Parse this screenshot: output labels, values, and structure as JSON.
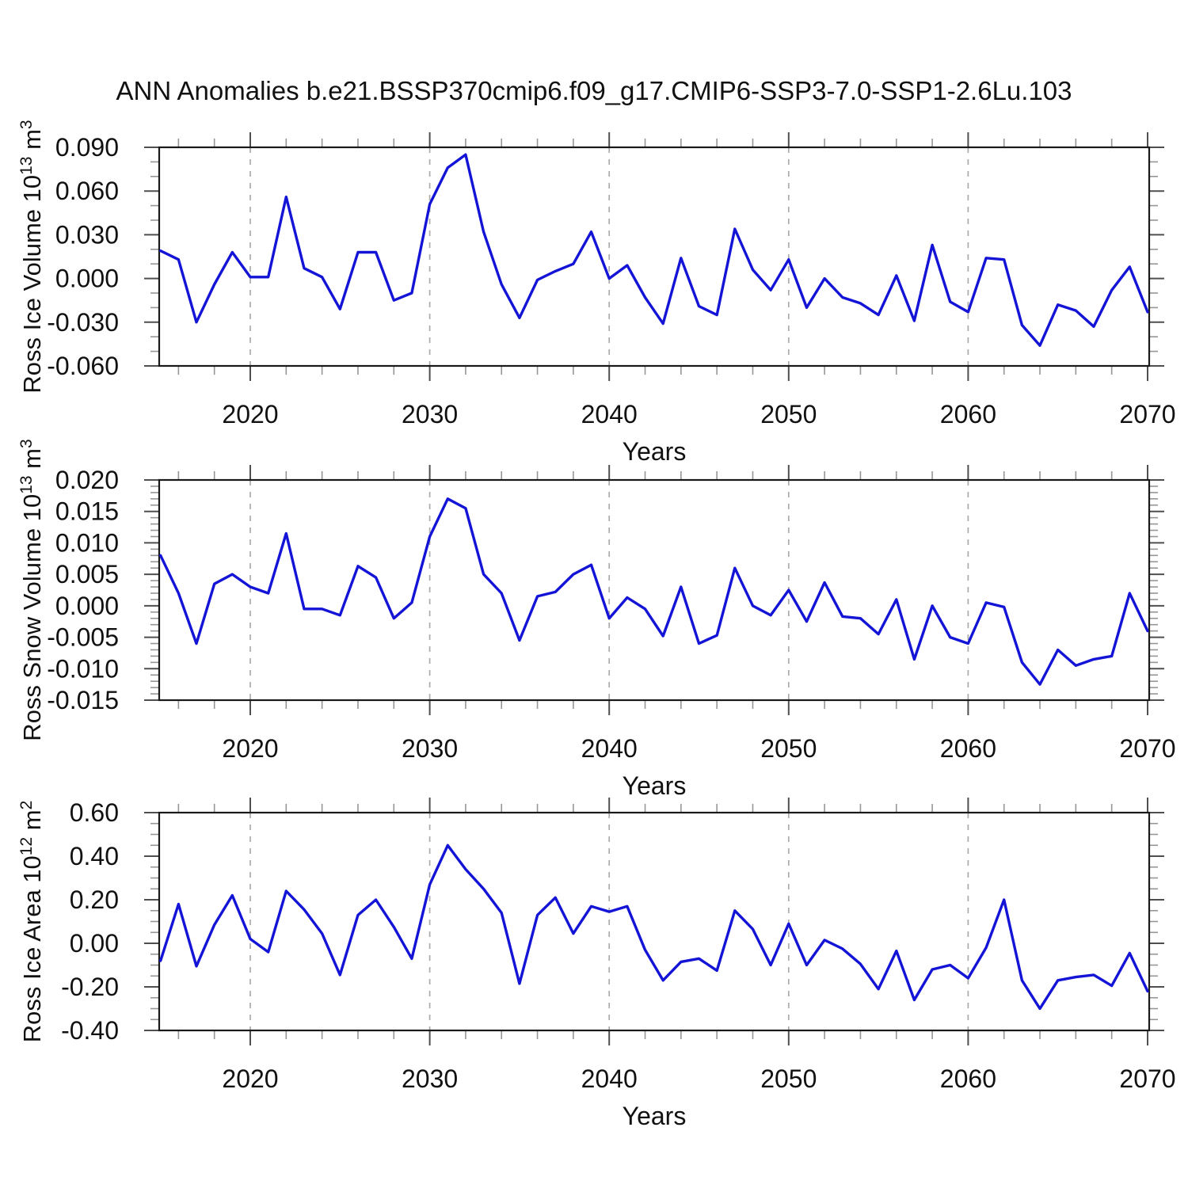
{
  "title": "ANN Anomalies b.e21.BSSP370cmip6.f09_g17.CMIP6-SSP3-7.0-SSP1-2.6Lu.103",
  "line_color": "#1414d7",
  "background": "#ffffff",
  "years": [
    2015,
    2016,
    2017,
    2018,
    2019,
    2020,
    2021,
    2022,
    2023,
    2024,
    2025,
    2026,
    2027,
    2028,
    2029,
    2030,
    2031,
    2032,
    2033,
    2034,
    2035,
    2036,
    2037,
    2038,
    2039,
    2040,
    2041,
    2042,
    2043,
    2044,
    2045,
    2046,
    2047,
    2048,
    2049,
    2050,
    2051,
    2052,
    2053,
    2054,
    2055,
    2056,
    2057,
    2058,
    2059,
    2060,
    2061,
    2062,
    2063,
    2064,
    2065,
    2066,
    2067,
    2068,
    2069,
    2070
  ],
  "x_axis": {
    "label": "Years",
    "tick_years": [
      2020,
      2030,
      2040,
      2050,
      2060,
      2070
    ],
    "minor_step_years": 2,
    "xlim": [
      2014.9,
      2070.1
    ],
    "gridline_years": [
      2020,
      2030,
      2040,
      2050,
      2060
    ],
    "grid_style": "dashed"
  },
  "chart_data": [
    {
      "type": "line",
      "ylabel": "Ross Ice Volume 10^13 m^3",
      "ylabel_parts": [
        {
          "t": "Ross Ice Volume 10"
        },
        {
          "t": "13",
          "sup": true
        },
        {
          "t": " m"
        },
        {
          "t": "3",
          "sup": true
        }
      ],
      "ylim": [
        -0.06,
        0.09
      ],
      "ytick_values": [
        0.09,
        0.06,
        0.03,
        0.0,
        -0.03,
        -0.06
      ],
      "ytick_labels": [
        "0.090",
        "0.060",
        "0.030",
        "0.000",
        "-0.030",
        "-0.060"
      ],
      "y_minor_step": 0.01,
      "values": [
        0.019,
        0.013,
        -0.03,
        -0.004,
        0.018,
        0.001,
        0.001,
        0.056,
        0.007,
        0.001,
        -0.021,
        0.018,
        0.018,
        -0.015,
        -0.01,
        0.051,
        0.076,
        0.085,
        0.032,
        -0.004,
        -0.027,
        -0.001,
        0.005,
        0.01,
        0.032,
        0.0,
        0.009,
        -0.013,
        -0.031,
        0.014,
        -0.019,
        -0.025,
        0.034,
        0.006,
        -0.008,
        0.013,
        -0.02,
        0.0,
        -0.013,
        -0.017,
        -0.025,
        0.002,
        -0.029,
        0.023,
        -0.016,
        -0.023,
        0.014,
        0.013,
        -0.032,
        -0.046,
        -0.018,
        -0.022,
        -0.033,
        -0.008,
        0.008,
        -0.023
      ]
    },
    {
      "type": "line",
      "ylabel": "Ross Snow Volume 10^13 m^3",
      "ylabel_parts": [
        {
          "t": "Ross Snow Volume 10"
        },
        {
          "t": "13",
          "sup": true
        },
        {
          "t": " m"
        },
        {
          "t": "3",
          "sup": true
        }
      ],
      "ylim": [
        -0.015,
        0.02
      ],
      "ytick_values": [
        0.02,
        0.015,
        0.01,
        0.005,
        0.0,
        -0.005,
        -0.01,
        -0.015
      ],
      "ytick_labels": [
        "0.020",
        "0.015",
        "0.010",
        "0.005",
        "0.000",
        "-0.005",
        "-0.010",
        "-0.015"
      ],
      "y_minor_step": 0.001,
      "values": [
        0.008,
        0.002,
        -0.006,
        0.0035,
        0.005,
        0.003,
        0.002,
        0.0115,
        -0.0005,
        -0.0005,
        -0.0015,
        0.0063,
        0.0045,
        -0.002,
        0.0005,
        0.011,
        0.017,
        0.0155,
        0.005,
        0.002,
        -0.0055,
        0.0015,
        0.0022,
        0.005,
        0.0065,
        -0.002,
        0.0013,
        -0.0005,
        -0.0048,
        0.003,
        -0.006,
        -0.0047,
        0.006,
        0.0,
        -0.0015,
        0.0025,
        -0.0025,
        0.0037,
        -0.0017,
        -0.002,
        -0.0045,
        0.001,
        -0.0085,
        0.0,
        -0.005,
        -0.006,
        0.0005,
        -0.0002,
        -0.009,
        -0.0125,
        -0.007,
        -0.0095,
        -0.0085,
        -0.008,
        0.002,
        -0.004
      ]
    },
    {
      "type": "line",
      "ylabel": "Ross Ice Area 10^12 m^2",
      "ylabel_parts": [
        {
          "t": "Ross Ice Area 10"
        },
        {
          "t": "12",
          "sup": true
        },
        {
          "t": " m"
        },
        {
          "t": "2",
          "sup": true
        }
      ],
      "ylim": [
        -0.4,
        0.6
      ],
      "ytick_values": [
        0.6,
        0.4,
        0.2,
        0.0,
        -0.2,
        -0.4
      ],
      "ytick_labels": [
        "0.60",
        "0.40",
        "0.20",
        "0.00",
        "-0.20",
        "-0.40"
      ],
      "y_minor_step": 0.05,
      "values": [
        -0.08,
        0.18,
        -0.105,
        0.085,
        0.22,
        0.02,
        -0.04,
        0.24,
        0.155,
        0.045,
        -0.145,
        0.13,
        0.2,
        0.075,
        -0.07,
        0.27,
        0.45,
        0.34,
        0.25,
        0.14,
        -0.185,
        0.13,
        0.21,
        0.045,
        0.17,
        0.145,
        0.17,
        -0.03,
        -0.17,
        -0.085,
        -0.07,
        -0.125,
        0.15,
        0.065,
        -0.1,
        0.09,
        -0.1,
        0.015,
        -0.025,
        -0.095,
        -0.21,
        -0.035,
        -0.26,
        -0.12,
        -0.1,
        -0.16,
        -0.02,
        0.2,
        -0.17,
        -0.3,
        -0.17,
        -0.155,
        -0.145,
        -0.195,
        -0.045,
        -0.22
      ]
    }
  ]
}
